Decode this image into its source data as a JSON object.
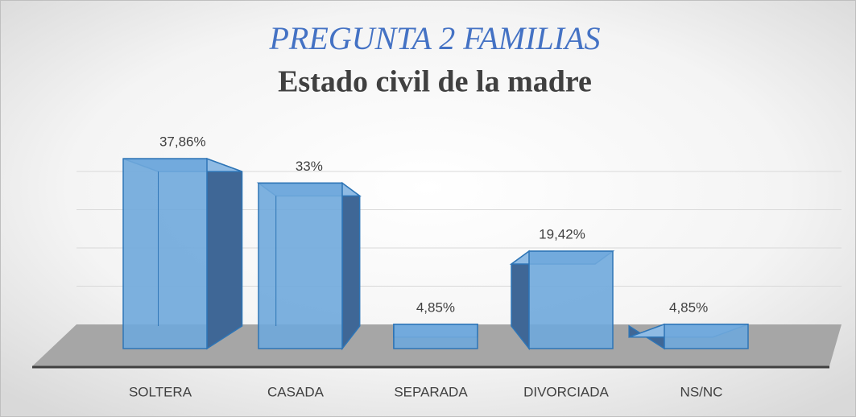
{
  "chart_data": {
    "type": "bar3d",
    "title": "PREGUNTA 2 FAMILIAS",
    "subtitle": "Estado civil de la madre",
    "categories": [
      "SOLTERA",
      "CASADA",
      "SEPARADA",
      "DIVORCIADA",
      "NS/NC"
    ],
    "values": [
      37.86,
      33,
      4.85,
      19.42,
      4.85
    ],
    "value_labels": [
      "37,86%",
      "33%",
      "4,85%",
      "19,42%",
      "4,85%"
    ],
    "color": "#6fa8dc",
    "ylim": [
      0,
      40
    ],
    "yticks": [
      0,
      10,
      20,
      30,
      40
    ],
    "grid": true
  }
}
